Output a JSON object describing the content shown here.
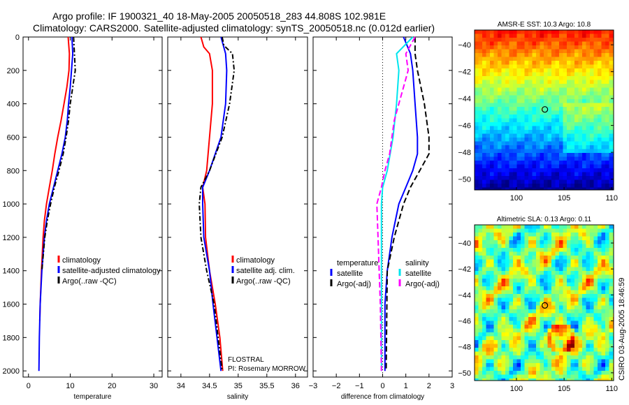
{
  "title_line1": "Argo profile: IF 1900321_40 18-May-2005 20050518_283 44.808S 102.981E",
  "title_line2": "Climatology: CARS2000. Satellite-adjusted climatology: synTS_20050518.nc (0.012d earlier)",
  "footer_stamp": "CSIRO 03-Aug-2005 18:46:59",
  "chart_data": [
    {
      "type": "line",
      "id": "temperature",
      "xlabel": "temperature",
      "ylabel": "",
      "xlim": [
        -1.3,
        32
      ],
      "ylim": [
        2037,
        0
      ],
      "xticks": [
        0,
        10,
        20,
        30
      ],
      "yticks": [
        0,
        200,
        400,
        600,
        800,
        1000,
        1200,
        1400,
        1600,
        1800,
        2000
      ],
      "legend": [
        "climatology",
        "satellite-adjusted climatology",
        "Argo(..raw -QC)"
      ],
      "series": [
        {
          "name": "climatology",
          "color": "#ff0000",
          "dash": "",
          "depth": [
            0,
            100,
            200,
            300,
            400,
            500,
            600,
            700,
            800,
            900,
            1000,
            1100,
            1200,
            1400,
            1600,
            1700
          ],
          "values": [
            9.5,
            9.8,
            9.7,
            9.2,
            8.5,
            7.8,
            7,
            6.3,
            5.7,
            5,
            4.3,
            3.8,
            3.5,
            3.1,
            2.8,
            2.7
          ]
        },
        {
          "name": "satellite-adjusted climatology",
          "color": "#0000ff",
          "dash": "",
          "depth": [
            0,
            100,
            200,
            300,
            400,
            500,
            600,
            700,
            800,
            900,
            1000,
            1100,
            1200,
            1400,
            1600,
            1800,
            2000
          ],
          "values": [
            10.4,
            10.6,
            10.3,
            10,
            9.6,
            9.3,
            8.8,
            8,
            7,
            6,
            5,
            4.3,
            3.8,
            3.2,
            2.8,
            2.6,
            2.5
          ]
        },
        {
          "name": "Argo(..raw -QC)",
          "color": "#000000",
          "dash": "7,3,2,3",
          "depth": [
            0,
            100,
            200,
            300,
            400,
            500,
            600,
            700,
            800,
            900,
            1000,
            1100,
            1200,
            1400
          ],
          "values": [
            10.8,
            11,
            11.2,
            10.6,
            10,
            9.6,
            9,
            8.3,
            7.3,
            6.2,
            5.3,
            4.5,
            3.9,
            3.2
          ]
        }
      ]
    },
    {
      "type": "line",
      "id": "salinity",
      "xlabel": "salinity",
      "xlim": [
        33.77,
        36.21
      ],
      "ylim": [
        2037,
        0
      ],
      "xticks": [
        34,
        34.5,
        35,
        35.5,
        36
      ],
      "legend": [
        "climatology",
        "satellite adj. clim.",
        "Argo(..raw -QC)"
      ],
      "annotation": [
        "FLOSTRAL",
        "PI: Rosemary MORROW"
      ],
      "series": [
        {
          "name": "climatology",
          "color": "#ff0000",
          "dash": "",
          "depth": [
            0,
            60,
            100,
            200,
            400,
            600,
            800,
            900,
            1000,
            1200,
            1400,
            1600,
            1800,
            2000
          ],
          "values": [
            34.35,
            34.4,
            34.5,
            34.55,
            34.55,
            34.5,
            34.45,
            34.38,
            34.42,
            34.43,
            34.5,
            34.6,
            34.68,
            34.73
          ]
        },
        {
          "name": "satellite adj. clim.",
          "color": "#0000ff",
          "dash": "",
          "depth": [
            0,
            100,
            200,
            400,
            600,
            800,
            900,
            1000,
            1200,
            1400,
            1600,
            1800,
            2000
          ],
          "values": [
            34.7,
            34.78,
            34.8,
            34.78,
            34.7,
            34.5,
            34.38,
            34.38,
            34.4,
            34.5,
            34.56,
            34.63,
            34.7
          ]
        },
        {
          "name": "Argo(..raw -QC)",
          "color": "#000000",
          "dash": "7,3,2,3",
          "depth": [
            0,
            50,
            100,
            200,
            400,
            600,
            800,
            900,
            1000,
            1200,
            1400,
            1600,
            1800,
            2000
          ],
          "values": [
            34.72,
            34.75,
            34.9,
            34.93,
            34.85,
            34.72,
            34.5,
            34.35,
            34.32,
            34.35,
            34.45,
            34.58,
            34.65,
            34.72
          ]
        }
      ]
    },
    {
      "type": "line",
      "id": "difference",
      "xlabel": "difference from climatology",
      "xlim": [
        -3,
        3
      ],
      "ylim": [
        2037,
        0
      ],
      "xticks": [
        -3,
        -2,
        -1,
        0,
        1,
        2,
        3
      ],
      "legend_left": [
        "temperature",
        "satellite",
        "Argo(-adj)"
      ],
      "legend_right": [
        "salinity",
        "satellite",
        "Argo(-adj)"
      ],
      "series": [
        {
          "name": "temperature satellite",
          "color": "#0000ff",
          "dash": "",
          "depth": [
            0,
            100,
            200,
            400,
            600,
            700,
            800,
            900,
            1000,
            1100,
            1200,
            1400,
            1600,
            2000
          ],
          "values": [
            0.9,
            1.2,
            1.3,
            1.4,
            1.5,
            1.5,
            1.3,
            1.0,
            0.7,
            0.55,
            0.4,
            0.2,
            0.1,
            0.1
          ]
        },
        {
          "name": "temperature Argo(-adj)",
          "color": "#000000",
          "dash": "8,4",
          "depth": [
            0,
            100,
            200,
            400,
            600,
            700,
            800,
            900,
            1000,
            1100,
            1200,
            1400,
            2000
          ],
          "values": [
            1.4,
            1.4,
            1.5,
            1.8,
            2.0,
            2.0,
            1.6,
            1.2,
            0.9,
            0.7,
            0.5,
            0.2,
            0.15
          ]
        },
        {
          "name": "salinity satellite",
          "color": "#00e5ee",
          "dash": "",
          "depth": [
            0,
            100,
            200,
            400,
            600,
            800,
            900,
            1000,
            1200,
            1600,
            2000
          ],
          "values": [
            1.3,
            0.6,
            0.7,
            0.6,
            0.45,
            0.2,
            0,
            -0.05,
            -0.05,
            -0.05,
            -0.05
          ]
        },
        {
          "name": "salinity Argo(-adj)",
          "color": "#ff00ff",
          "dash": "8,4",
          "depth": [
            0,
            100,
            200,
            300,
            400,
            500,
            600,
            700,
            800,
            900,
            1000,
            1200,
            1400,
            1600,
            2000
          ],
          "values": [
            1.4,
            1.0,
            1.1,
            0.9,
            0.7,
            0.5,
            0.4,
            0.3,
            0.1,
            -0.05,
            -0.25,
            -0.2,
            -0.15,
            -0.1,
            -0.05
          ]
        }
      ]
    },
    {
      "type": "heatmap",
      "id": "sst-map",
      "title": "AMSR-E SST: 10.3 Argo: 10.8",
      "xlim": [
        95.6,
        110.2
      ],
      "ylim": [
        -50.8,
        -38.9
      ],
      "xticks": [
        100,
        105,
        110
      ],
      "yticks": [
        -40,
        -42,
        -44,
        -46,
        -48,
        -50
      ],
      "marker": {
        "lon": 102.981,
        "lat": -44.808
      }
    },
    {
      "type": "heatmap",
      "id": "sla-map",
      "title": "Altimetric SLA: 0.13 Argo: 0.11",
      "xlim": [
        95.6,
        110.2
      ],
      "ylim": [
        -50.6,
        -38.6
      ],
      "xticks": [
        100,
        105,
        110
      ],
      "yticks": [
        -40,
        -42,
        -44,
        -46,
        -48,
        -50
      ],
      "marker": {
        "lon": 102.981,
        "lat": -44.808
      }
    }
  ]
}
